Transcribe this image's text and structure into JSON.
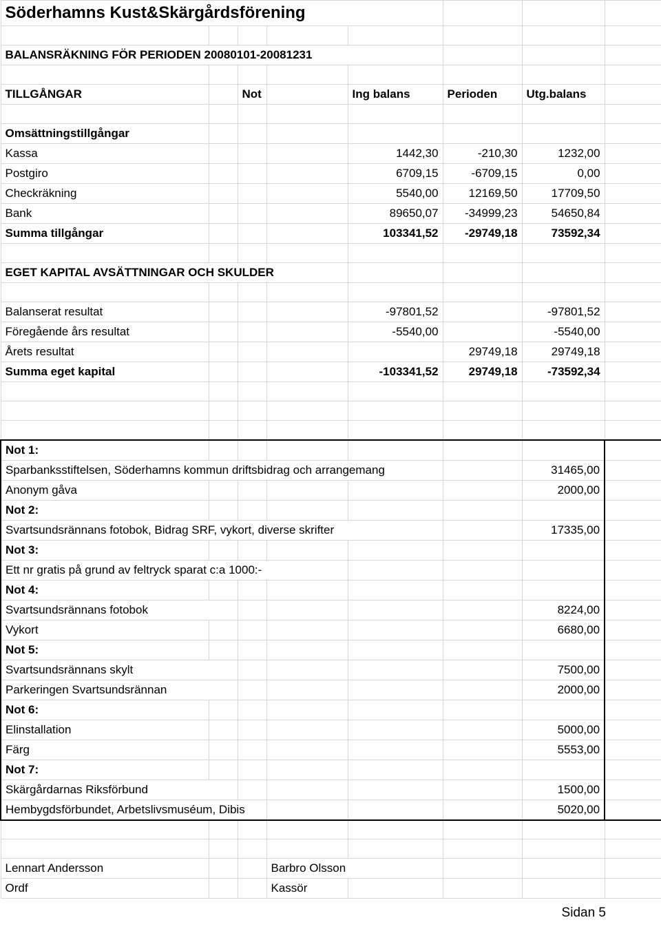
{
  "title": "Söderhamns Kust&Skärgårdsförening",
  "subtitle": "BALANSRÄKNING FÖR PERIODEN 20080101-20081231",
  "headers": {
    "tillgangar": "TILLGÅNGAR",
    "not": "Not",
    "ingbalans": "Ing balans",
    "perioden": "Perioden",
    "utgbalans": "Utg.balans"
  },
  "oms": {
    "label": "Omsättningstillgångar",
    "kassa": {
      "label": "Kassa",
      "a": "1442,30",
      "b": "-210,30",
      "c": "1232,00"
    },
    "postgiro": {
      "label": "Postgiro",
      "a": "6709,15",
      "b": "-6709,15",
      "c": "0,00"
    },
    "check": {
      "label": "Checkräkning",
      "a": "5540,00",
      "b": "12169,50",
      "c": "17709,50"
    },
    "bank": {
      "label": "Bank",
      "a": "89650,07",
      "b": "-34999,23",
      "c": "54650,84"
    },
    "summa": {
      "label": "Summa tillgångar",
      "a": "103341,52",
      "b": "-29749,18",
      "c": "73592,34"
    }
  },
  "eget_label": "EGET KAPITAL AVSÄTTNINGAR OCH SKULDER",
  "eget": {
    "balres": {
      "label": "Balanserat resultat",
      "a": "-97801,52",
      "c": "-97801,52"
    },
    "foreg": {
      "label": "Föregående års resultat",
      "a": "-5540,00",
      "c": "-5540,00"
    },
    "arets": {
      "label": "Årets resultat",
      "b": "29749,18",
      "c": "29749,18"
    },
    "summa": {
      "label": "Summa eget kapital",
      "a": "-103341,52",
      "b": "29749,18",
      "c": "-73592,34"
    }
  },
  "notes": {
    "not1": "Not 1:",
    "spar": {
      "label": "Sparbanksstiftelsen, Söderhamns kommun driftsbidrag och arrangemang",
      "v": "31465,00"
    },
    "anon": {
      "label": "Anonym gåva",
      "v": "2000,00"
    },
    "not2": "Not 2:",
    "svart2": {
      "label": "Svartsundsrännans fotobok, Bidrag SRF, vykort, diverse skrifter",
      "v": "17335,00"
    },
    "not3": "Not 3:",
    "ettnr": "Ett nr gratis på grund av feltryck sparat c:a 1000:-",
    "not4": "Not 4:",
    "foto": {
      "label": "Svartsundsrännans fotobok",
      "v": "8224,00"
    },
    "vykort": {
      "label": "Vykort",
      "v": "6680,00"
    },
    "not5": "Not 5:",
    "skylt": {
      "label": "Svartsundsrännans skylt",
      "v": "7500,00"
    },
    "park": {
      "label": "Parkeringen Svartsundsrännan",
      "v": "2000,00"
    },
    "not6": "Not 6:",
    "elin": {
      "label": "Elinstallation",
      "v": "5000,00"
    },
    "farg": {
      "label": "Färg",
      "v": "5553,00"
    },
    "not7": "Not 7:",
    "riks": {
      "label": "Skärgårdarnas Riksförbund",
      "v": "1500,00"
    },
    "hemb": {
      "label": "Hembygdsförbundet, Arbetslivsmuséum, Dibis",
      "v": "5020,00"
    }
  },
  "sign": {
    "lennart": "Lennart Andersson",
    "barbro": "Barbro Olsson",
    "ordf": "Ordf",
    "kassor": "Kassör"
  },
  "footer": "Sidan 5"
}
